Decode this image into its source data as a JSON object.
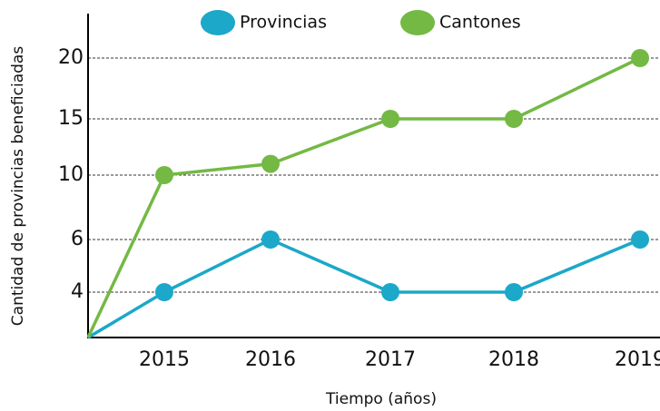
{
  "chart_data": {
    "type": "line",
    "xlabel": "Tiempo (años)",
    "ylabel": "Cantidad de provincias beneficiadas",
    "categories": [
      null,
      "2015",
      "2016",
      "2017",
      "2018",
      "2019"
    ],
    "series": [
      {
        "name": "Provincias",
        "color": "#1ba8c9",
        "values": [
          0,
          4,
          6,
          4,
          4,
          6
        ]
      },
      {
        "name": "Cantones",
        "color": "#73b944",
        "values": [
          0,
          10,
          11,
          15,
          15,
          20
        ]
      }
    ],
    "ylim": [
      0,
      23
    ],
    "yticks": [
      4,
      6,
      10,
      15,
      20
    ],
    "grid": true,
    "legend": "top"
  }
}
